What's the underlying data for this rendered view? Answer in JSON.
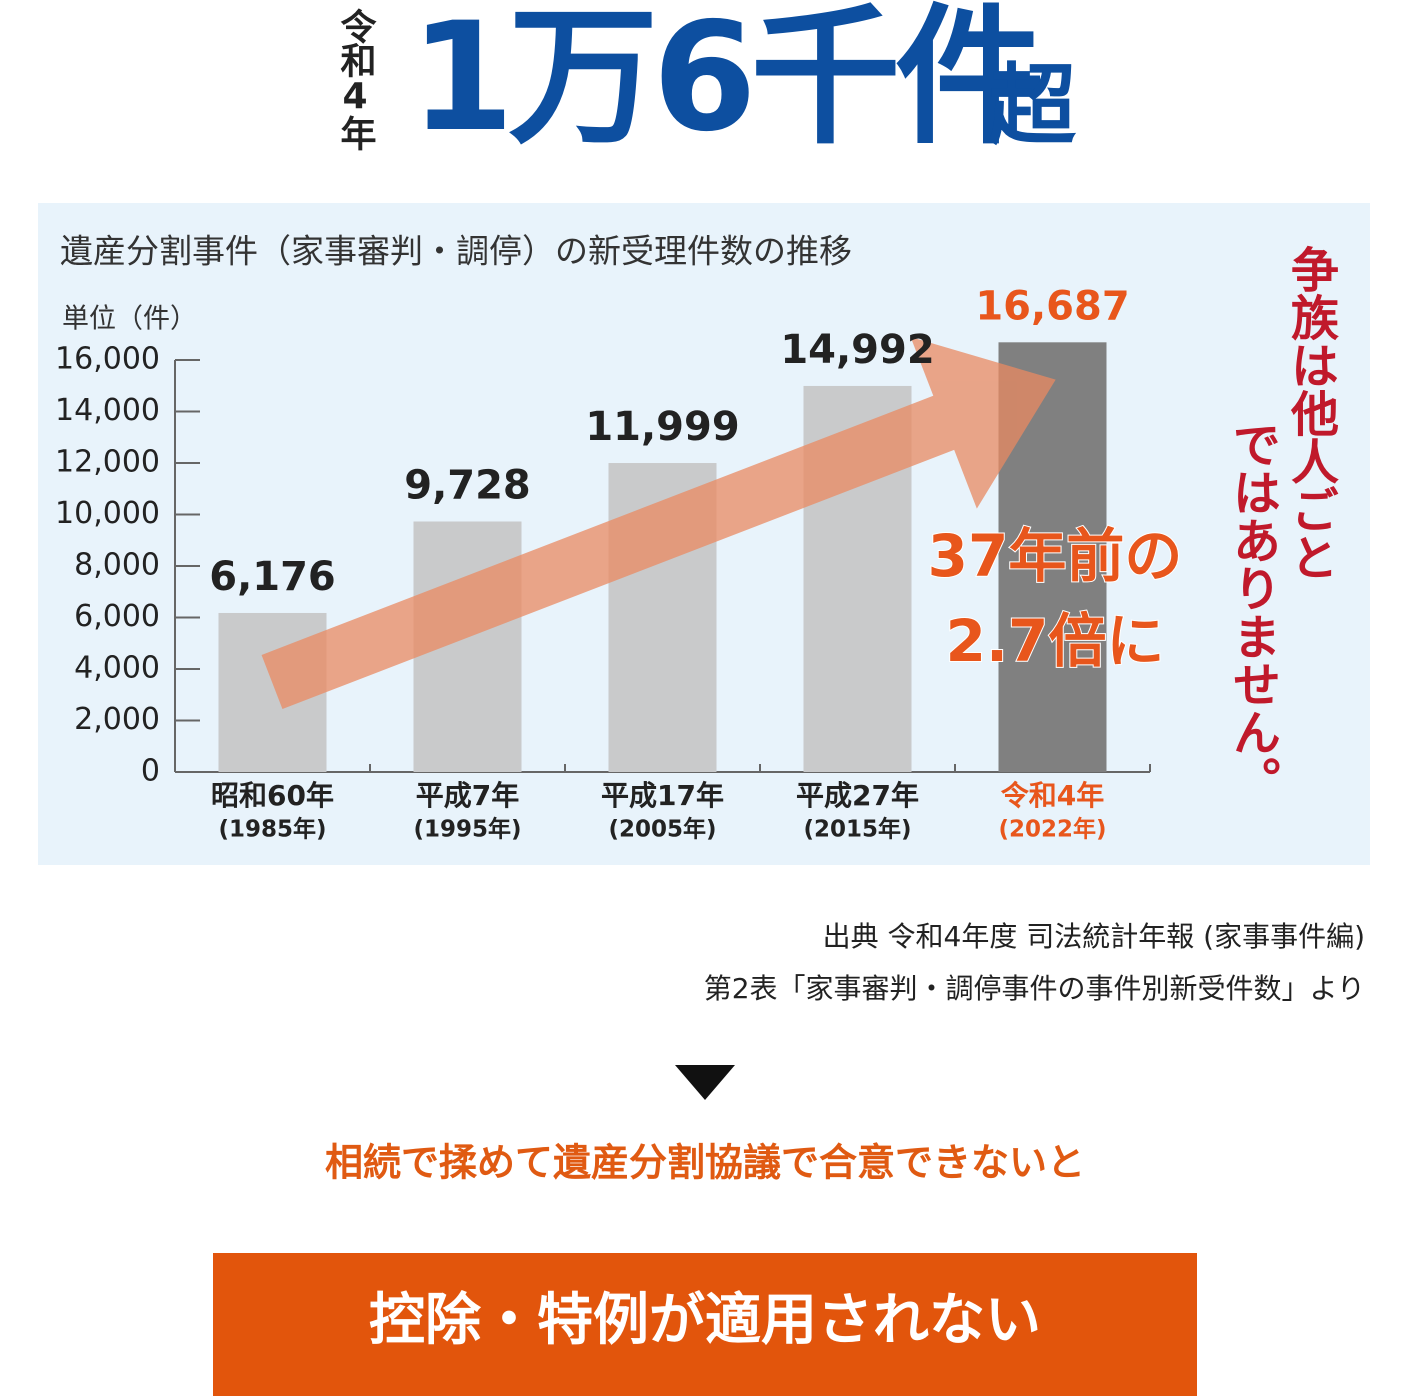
{
  "header": {
    "era": "令和4年",
    "headline": "1万6千件",
    "suffix": "超"
  },
  "chart_data": {
    "type": "bar",
    "title": "遺産分割事件（家事審判・調停）の新受理件数の推移",
    "unit": "単位（件）",
    "categories": [
      "昭和60年",
      "平成7年",
      "平成17年",
      "平成27年",
      "令和4年"
    ],
    "subcategories": [
      "(1985年)",
      "(1995年)",
      "(2005年)",
      "(2015年)",
      "(2022年)"
    ],
    "values": [
      6176,
      9728,
      11999,
      14992,
      16687
    ],
    "value_labels": [
      "6,176",
      "9,728",
      "11,999",
      "14,992",
      "16,687"
    ],
    "colors": [
      "#c9cacb",
      "#c9cacb",
      "#c9cacb",
      "#c9cacb",
      "#808080"
    ],
    "label_colors": [
      "#222222",
      "#222222",
      "#222222",
      "#222222",
      "#e8561c"
    ],
    "ylim": [
      0,
      16000
    ],
    "yticks": [
      0,
      {
        "value": 2000,
        "label": "2,000"
      },
      {
        "value": 4000,
        "label": "4,000"
      },
      {
        "value": 6000,
        "label": "6,000"
      },
      {
        "value": 8000,
        "label": "8,000"
      },
      {
        "value": 10000,
        "label": "10,000"
      },
      {
        "value": 12000,
        "label": "12,000"
      },
      {
        "value": 14000,
        "label": "14,000"
      },
      {
        "value": 16000,
        "label": "16,000"
      }
    ],
    "annotation": [
      "37年前の",
      "2.7倍に"
    ],
    "side_note": [
      "争族は他人ごと",
      "ではありません。"
    ]
  },
  "source": [
    "出典 令和4年度 司法統計年報 (家事事件編)",
    "第2表「家事審判・調停事件の事件別新受件数」より"
  ],
  "lead": "相続で揉めて遺産分割協議で合意できないと",
  "banner": "控除・特例が適用されない"
}
